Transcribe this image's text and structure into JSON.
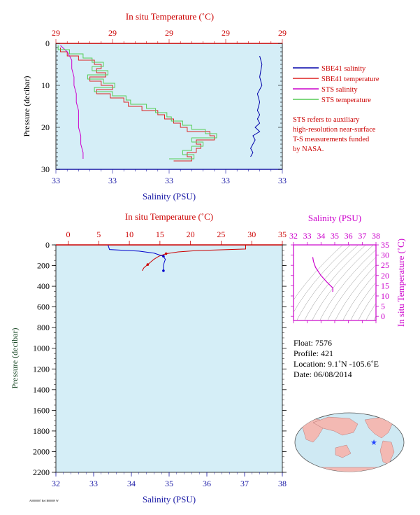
{
  "chart_data": [
    {
      "type": "line",
      "top_axis_label": "In situ Temperature (˚C)",
      "top_tick_labels": [
        "29",
        "29",
        "29",
        "29",
        "29"
      ],
      "xlabel": "Salinity (PSU)",
      "bottom_tick_labels": [
        "33",
        "33",
        "33",
        "33",
        "33"
      ],
      "ylabel": "Pressure (decibar)",
      "ylim": [
        0,
        30
      ],
      "y_tick_labels": [
        "0",
        "10",
        "20",
        "30"
      ],
      "legend_position": "right",
      "series": [
        {
          "name": "SBE41 salinity",
          "color": "#0000aa",
          "pressure": [
            3,
            5,
            8,
            10,
            12,
            14,
            16,
            17,
            18,
            19,
            20,
            21,
            22,
            23,
            24,
            25,
            26,
            27
          ],
          "value_frac": [
            0.9,
            0.91,
            0.9,
            0.91,
            0.89,
            0.9,
            0.89,
            0.9,
            0.89,
            0.9,
            0.88,
            0.9,
            0.87,
            0.88,
            0.87,
            0.86,
            0.87,
            0.86
          ]
        },
        {
          "name": "SBE41 temperature",
          "color": "#dd2222",
          "pressure": [
            1,
            2,
            3,
            4,
            5,
            6,
            7,
            8,
            9,
            10,
            11,
            12,
            13,
            14,
            15,
            16,
            17,
            18,
            19,
            20,
            21,
            22,
            23,
            24,
            25,
            26,
            27,
            28
          ],
          "value_frac": [
            0.02,
            0.05,
            0.1,
            0.17,
            0.2,
            0.18,
            0.22,
            0.15,
            0.2,
            0.25,
            0.18,
            0.24,
            0.3,
            0.32,
            0.38,
            0.45,
            0.48,
            0.52,
            0.55,
            0.58,
            0.68,
            0.7,
            0.62,
            0.64,
            0.62,
            0.58,
            0.6,
            0.52
          ]
        },
        {
          "name": "STS salinity",
          "color": "#cc00cc",
          "pressure": [
            0.5,
            2,
            4,
            6,
            8,
            10,
            12,
            14,
            16,
            18,
            20,
            22,
            24,
            26,
            27.5
          ],
          "value_frac": [
            0.02,
            0.05,
            0.07,
            0.07,
            0.08,
            0.08,
            0.09,
            0.09,
            0.1,
            0.1,
            0.1,
            0.11,
            0.11,
            0.12,
            0.12
          ]
        },
        {
          "name": "STS temperature",
          "color": "#55cc55",
          "pressure": [
            0.5,
            1.5,
            2.5,
            3.5,
            4.5,
            5.5,
            6.5,
            7.5,
            8.5,
            9.5,
            10.5,
            11.5,
            12.5,
            13.5,
            14.5,
            15.5,
            16.5,
            17.5,
            18.5,
            19.5,
            20.5,
            21.5,
            22.5,
            23.5,
            24.5,
            25.5,
            26.5,
            27.5
          ],
          "value_frac": [
            0.01,
            0.06,
            0.12,
            0.16,
            0.21,
            0.16,
            0.23,
            0.14,
            0.21,
            0.26,
            0.17,
            0.25,
            0.31,
            0.33,
            0.4,
            0.44,
            0.49,
            0.51,
            0.56,
            0.6,
            0.66,
            0.71,
            0.6,
            0.65,
            0.6,
            0.56,
            0.61,
            0.5
          ]
        }
      ]
    },
    {
      "type": "line",
      "top_axis_label": "In situ Temperature (˚C)",
      "xlabel": "Salinity (PSU)",
      "ylabel": "Pressure (decibar)",
      "temperature_ticks": [
        0,
        5,
        10,
        15,
        20,
        25,
        30,
        35
      ],
      "salinity_ticks": [
        32,
        33,
        34,
        35,
        36,
        37,
        38
      ],
      "pressure_ticks": [
        0,
        200,
        400,
        600,
        800,
        1000,
        1200,
        1400,
        1600,
        1800,
        2000,
        2200
      ],
      "temperature_lim": [
        -2,
        35
      ],
      "salinity_lim": [
        32,
        38
      ],
      "pressure_lim": [
        0,
        2200
      ],
      "series": [
        {
          "name": "temperature",
          "color": "#cc0000",
          "points": [
            [
              29.0,
              0
            ],
            [
              29.0,
              40
            ],
            [
              21.0,
              55
            ],
            [
              18.0,
              68
            ],
            [
              16.0,
              85
            ],
            [
              14.8,
              110
            ],
            [
              14.0,
              140
            ],
            [
              13.6,
              160
            ],
            [
              13.0,
              190
            ],
            [
              12.4,
              220
            ],
            [
              12.1,
              250
            ]
          ]
        },
        {
          "name": "salinity",
          "color": "#0000cc",
          "points": [
            [
              33.38,
              0
            ],
            [
              33.42,
              45
            ],
            [
              34.2,
              60
            ],
            [
              34.6,
              80
            ],
            [
              34.85,
              110
            ],
            [
              34.9,
              140
            ],
            [
              34.87,
              170
            ],
            [
              34.85,
              200
            ],
            [
              34.85,
              250
            ]
          ]
        }
      ]
    },
    {
      "type": "scatter",
      "top_axis_label": "Salinity (PSU)",
      "right_axis_label": "In situ Temperature (˚C)",
      "x_ticks": [
        32,
        33,
        34,
        35,
        36,
        37,
        38
      ],
      "y_ticks": [
        0,
        5,
        10,
        15,
        20,
        25,
        30,
        35
      ],
      "xlim": [
        32,
        38
      ],
      "ylim": [
        -2,
        35
      ],
      "series": [
        {
          "name": "T-S",
          "color": "#cc00cc",
          "points": [
            [
              33.4,
              29.0
            ],
            [
              33.45,
              27.0
            ],
            [
              33.6,
              24.0
            ],
            [
              34.0,
              20.0
            ],
            [
              34.4,
              17.0
            ],
            [
              34.7,
              15.0
            ],
            [
              34.85,
              14.0
            ],
            [
              34.87,
              13.0
            ],
            [
              34.85,
              12.0
            ]
          ]
        }
      ]
    }
  ],
  "legend": {
    "items": [
      {
        "label": "SBE41 salinity",
        "color": "#0000aa"
      },
      {
        "label": "SBE41 temperature",
        "color": "#dd2222"
      },
      {
        "label": "STS salinity",
        "color": "#cc00cc"
      },
      {
        "label": "STS temperature",
        "color": "#55cc55"
      }
    ],
    "note_lines": [
      "STS refers to auxiliary",
      "high-resolution near-surface",
      "T-S measurements funded",
      "by NASA."
    ]
  },
  "info": {
    "float": "Float:  7576",
    "profile": "Profile:  421",
    "location": "Location:  9.1˚N  -105.6˚E",
    "date": "Date:  06/08/2014"
  },
  "map": {
    "marker_lat": 9.1,
    "marker_lon": -105.6,
    "marker_color": "#2244ff"
  },
  "footer_text": "A0000007 Rel B00009 W"
}
